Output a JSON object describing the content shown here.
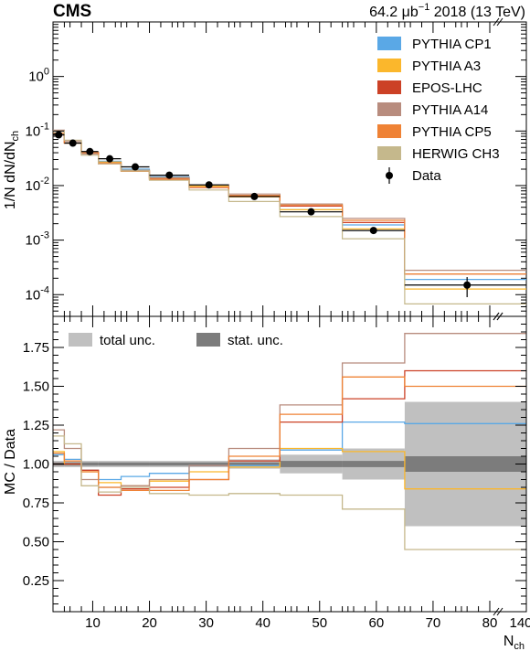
{
  "header": {
    "experiment": "CMS",
    "lumi_value": "64.2",
    "lumi_unit_base": "μb",
    "lumi_unit_exp": "−1",
    "lumi_suffix": "2018 (13 TeV)"
  },
  "chart_data": {
    "type": "line",
    "bin_edges": [
      3,
      5,
      8,
      11,
      15,
      20,
      27,
      34,
      43,
      54,
      65,
      140
    ],
    "x_ticks_linear": [
      10,
      20,
      30,
      40,
      50,
      60,
      70,
      80
    ],
    "x_tick_last": 140,
    "xlabel_main": "N",
    "xlabel_sub": "ch",
    "colors": {
      "cp1": "#5aa8e6",
      "a3": "#fbb72c",
      "epos": "#cc4126",
      "a14": "#b88c7e",
      "cp5": "#ef8235",
      "herwig": "#c5b88c",
      "total_unc": "#c0c0c0",
      "stat_unc": "#7c7c7c"
    },
    "top": {
      "ylabel": "1/N dN/dN",
      "ylabel_sub": "ch",
      "scale": "log",
      "ylim": [
        4e-05,
        10
      ],
      "y_ticks": [
        {
          "base": "10",
          "exp": "0",
          "value": 1
        },
        {
          "base": "10",
          "exp": "-1",
          "value": 0.1
        },
        {
          "base": "10",
          "exp": "-2",
          "value": 0.01
        },
        {
          "base": "10",
          "exp": "-3",
          "value": 0.001
        },
        {
          "base": "10",
          "exp": "-4",
          "value": 0.0001
        }
      ],
      "data": {
        "name": "Data",
        "x": [
          4,
          6.5,
          9.5,
          13,
          17.5,
          23.5,
          30.5,
          38.5,
          48.5,
          59.5,
          76
        ],
        "values": [
          0.085,
          0.06,
          0.042,
          0.031,
          0.022,
          0.0155,
          0.0103,
          0.0063,
          0.0033,
          0.0015,
          0.00015
        ],
        "err_low": [
          0.006,
          0.004,
          0.003,
          0.002,
          0.0015,
          0.001,
          0.0007,
          0.0004,
          0.0003,
          0.00015,
          6e-05
        ],
        "err_high": [
          0.006,
          0.004,
          0.003,
          0.002,
          0.0015,
          0.001,
          0.0007,
          0.0004,
          0.0003,
          0.00015,
          6e-05
        ]
      },
      "series": [
        {
          "name": "PYTHIA CP1",
          "color_key": "cp1",
          "values": [
            0.09,
            0.062,
            0.04,
            0.028,
            0.02,
            0.0145,
            0.0102,
            0.0065,
            0.0036,
            0.0019,
            0.00019
          ]
        },
        {
          "name": "PYTHIA A3",
          "color_key": "a3",
          "values": [
            0.092,
            0.06,
            0.04,
            0.027,
            0.019,
            0.0138,
            0.0098,
            0.0062,
            0.0036,
            0.0016,
            0.000127
          ]
        },
        {
          "name": "EPOS-LHC",
          "color_key": "epos",
          "values": [
            0.085,
            0.06,
            0.04,
            0.025,
            0.0185,
            0.0132,
            0.0092,
            0.0064,
            0.0042,
            0.0021,
            0.00024
          ]
        },
        {
          "name": "PYTHIA A14",
          "color_key": "a14",
          "values": [
            0.104,
            0.066,
            0.038,
            0.026,
            0.019,
            0.014,
            0.0103,
            0.007,
            0.0046,
            0.0025,
            0.00028
          ]
        },
        {
          "name": "PYTHIA CP5",
          "color_key": "cp5",
          "values": [
            0.091,
            0.061,
            0.04,
            0.026,
            0.0182,
            0.0129,
            0.0093,
            0.0066,
            0.0044,
            0.0023,
            0.00024
          ]
        },
        {
          "name": "HERWIG CH3",
          "color_key": "herwig",
          "values": [
            0.1,
            0.068,
            0.036,
            0.025,
            0.0185,
            0.0125,
            0.0083,
            0.0051,
            0.0027,
            0.00106,
            6.75e-05
          ]
        }
      ]
    },
    "bottom": {
      "ylabel": "MC / Data",
      "scale": "linear",
      "ylim": [
        0.05,
        1.95
      ],
      "y_ticks": [
        0.25,
        0.5,
        0.75,
        1.0,
        1.25,
        1.5,
        1.75
      ],
      "y_tick_labels": [
        "0.25",
        "0.50",
        "0.75",
        "1.00",
        "1.25",
        "1.50",
        "1.75"
      ],
      "legend": [
        {
          "name": "total unc.",
          "color_key": "total_unc"
        },
        {
          "name": "stat. unc.",
          "color_key": "stat_unc"
        }
      ],
      "total_unc": [
        0.02,
        0.02,
        0.02,
        0.02,
        0.02,
        0.02,
        0.02,
        0.03,
        0.06,
        0.1,
        0.4
      ],
      "stat_unc": [
        0.01,
        0.01,
        0.01,
        0.01,
        0.01,
        0.01,
        0.01,
        0.01,
        0.02,
        0.02,
        0.05
      ],
      "series": [
        {
          "name": "PYTHIA CP1",
          "color_key": "cp1",
          "values": [
            1.06,
            1.03,
            0.96,
            0.9,
            0.92,
            0.94,
            0.99,
            0.99,
            1.09,
            1.27,
            1.26
          ]
        },
        {
          "name": "PYTHIA A3",
          "color_key": "a3",
          "values": [
            1.08,
            1.0,
            0.95,
            0.88,
            0.86,
            0.89,
            0.95,
            0.98,
            1.1,
            1.08,
            0.84
          ]
        },
        {
          "name": "EPOS-LHC",
          "color_key": "epos",
          "values": [
            1.0,
            1.0,
            0.96,
            0.8,
            0.84,
            0.85,
            0.9,
            1.02,
            1.27,
            1.42,
            1.6
          ]
        },
        {
          "name": "PYTHIA A14",
          "color_key": "a14",
          "values": [
            1.22,
            1.1,
            0.9,
            0.85,
            0.86,
            0.9,
            0.99,
            1.1,
            1.38,
            1.65,
            1.84
          ]
        },
        {
          "name": "PYTHIA CP5",
          "color_key": "cp5",
          "values": [
            1.07,
            1.02,
            0.95,
            0.85,
            0.83,
            0.83,
            0.9,
            1.05,
            1.32,
            1.56,
            1.5
          ]
        },
        {
          "name": "HERWIG CH3",
          "color_key": "herwig",
          "values": [
            1.18,
            1.13,
            0.86,
            0.82,
            0.85,
            0.81,
            0.8,
            0.81,
            0.8,
            0.71,
            0.45
          ]
        }
      ]
    }
  }
}
